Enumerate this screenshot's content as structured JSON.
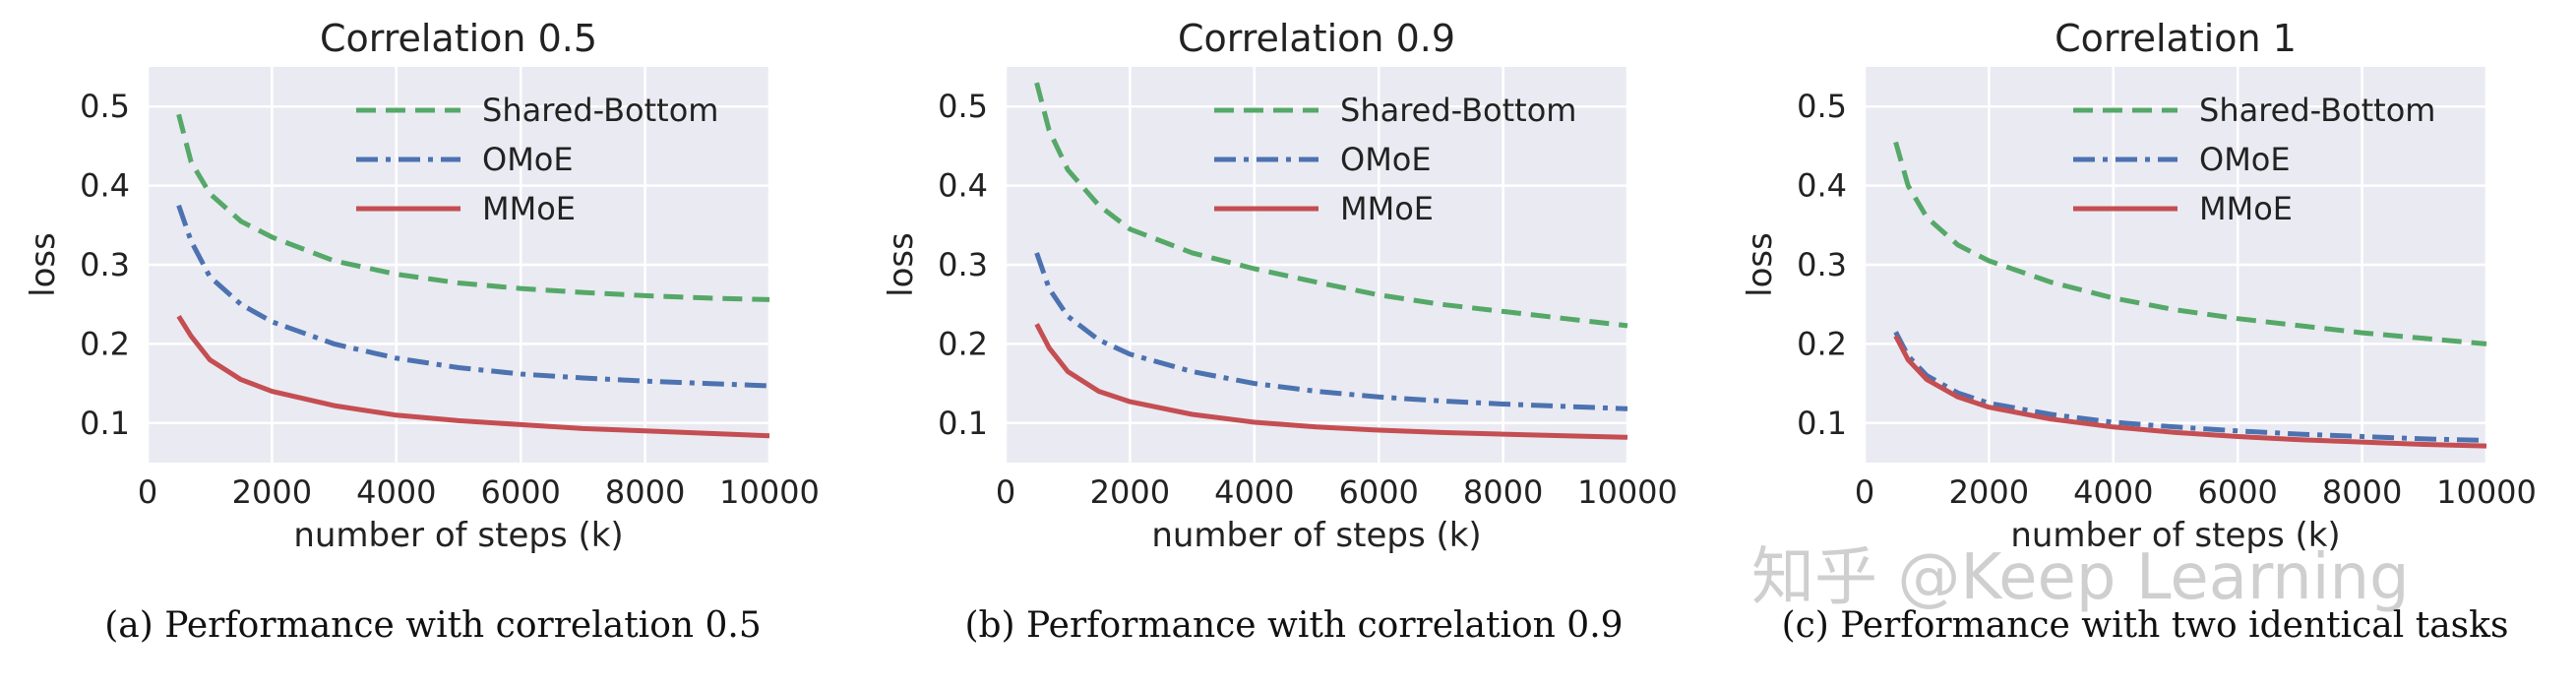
{
  "figure": {
    "captions": [
      "(a) Performance with correlation 0.5",
      "(b) Performance with correlation 0.9",
      "(c) Performance with two identical tasks"
    ],
    "watermark": "知乎 @Keep Learning"
  },
  "colors": {
    "background": "#EAEAF2",
    "grid": "#FFFFFF",
    "shared_bottom": "#55A868",
    "omoe": "#4C72B0",
    "mmoe": "#C44E52",
    "text": "#222222"
  },
  "chart_data": [
    {
      "type": "line",
      "title": "Correlation 0.5",
      "xlabel": "number of steps (k)",
      "ylabel": "loss",
      "xlim": [
        0,
        10000
      ],
      "ylim": [
        0.05,
        0.55
      ],
      "xticks": [
        0,
        2000,
        4000,
        6000,
        8000,
        10000
      ],
      "xtick_labels": [
        "0",
        "2000",
        "4000",
        "6000",
        "8000",
        "10000"
      ],
      "yticks": [
        0.1,
        0.2,
        0.3,
        0.4,
        0.5
      ],
      "ytick_labels": [
        "0.1",
        "0.2",
        "0.3",
        "0.4",
        "0.5"
      ],
      "grid": true,
      "legend": "top-right",
      "x": [
        500,
        700,
        1000,
        1500,
        2000,
        3000,
        4000,
        5000,
        6000,
        7000,
        8000,
        9000,
        10000
      ],
      "series": [
        {
          "name": "Shared-Bottom",
          "style": "dashed",
          "values": [
            0.49,
            0.43,
            0.39,
            0.355,
            0.335,
            0.305,
            0.288,
            0.277,
            0.27,
            0.265,
            0.261,
            0.258,
            0.256
          ]
        },
        {
          "name": "OMoE",
          "style": "dashdot",
          "values": [
            0.375,
            0.33,
            0.285,
            0.25,
            0.228,
            0.2,
            0.182,
            0.17,
            0.162,
            0.157,
            0.153,
            0.15,
            0.147
          ]
        },
        {
          "name": "MMoE",
          "style": "solid",
          "values": [
            0.235,
            0.21,
            0.18,
            0.155,
            0.14,
            0.122,
            0.11,
            0.103,
            0.098,
            0.093,
            0.09,
            0.087,
            0.084
          ]
        }
      ]
    },
    {
      "type": "line",
      "title": "Correlation 0.9",
      "xlabel": "number of steps (k)",
      "ylabel": "loss",
      "xlim": [
        0,
        10000
      ],
      "ylim": [
        0.05,
        0.55
      ],
      "xticks": [
        0,
        2000,
        4000,
        6000,
        8000,
        10000
      ],
      "xtick_labels": [
        "0",
        "2000",
        "4000",
        "6000",
        "8000",
        "10000"
      ],
      "yticks": [
        0.1,
        0.2,
        0.3,
        0.4,
        0.5
      ],
      "ytick_labels": [
        "0.1",
        "0.2",
        "0.3",
        "0.4",
        "0.5"
      ],
      "grid": true,
      "legend": "top-right",
      "x": [
        500,
        700,
        1000,
        1500,
        2000,
        3000,
        4000,
        5000,
        6000,
        7000,
        8000,
        9000,
        10000
      ],
      "series": [
        {
          "name": "Shared-Bottom",
          "style": "dashed",
          "values": [
            0.53,
            0.47,
            0.42,
            0.375,
            0.345,
            0.315,
            0.295,
            0.278,
            0.262,
            0.25,
            0.241,
            0.232,
            0.223
          ]
        },
        {
          "name": "OMoE",
          "style": "dashdot",
          "values": [
            0.315,
            0.27,
            0.235,
            0.205,
            0.187,
            0.165,
            0.15,
            0.14,
            0.133,
            0.128,
            0.124,
            0.121,
            0.118
          ]
        },
        {
          "name": "MMoE",
          "style": "solid",
          "values": [
            0.225,
            0.195,
            0.165,
            0.14,
            0.127,
            0.111,
            0.101,
            0.095,
            0.091,
            0.088,
            0.086,
            0.084,
            0.082
          ]
        }
      ]
    },
    {
      "type": "line",
      "title": "Correlation 1",
      "xlabel": "number of steps (k)",
      "ylabel": "loss",
      "xlim": [
        0,
        10000
      ],
      "ylim": [
        0.05,
        0.55
      ],
      "xticks": [
        0,
        2000,
        4000,
        6000,
        8000,
        10000
      ],
      "xtick_labels": [
        "0",
        "2000",
        "4000",
        "6000",
        "8000",
        "10000"
      ],
      "yticks": [
        0.1,
        0.2,
        0.3,
        0.4,
        0.5
      ],
      "ytick_labels": [
        "0.1",
        "0.2",
        "0.3",
        "0.4",
        "0.5"
      ],
      "grid": true,
      "legend": "top-right",
      "x": [
        500,
        700,
        1000,
        1500,
        2000,
        3000,
        4000,
        5000,
        6000,
        7000,
        8000,
        9000,
        10000
      ],
      "series": [
        {
          "name": "Shared-Bottom",
          "style": "dashed",
          "values": [
            0.455,
            0.4,
            0.36,
            0.325,
            0.305,
            0.278,
            0.258,
            0.243,
            0.232,
            0.223,
            0.214,
            0.207,
            0.2
          ]
        },
        {
          "name": "OMoE",
          "style": "dashdot",
          "values": [
            0.215,
            0.185,
            0.16,
            0.138,
            0.125,
            0.111,
            0.101,
            0.095,
            0.09,
            0.086,
            0.083,
            0.08,
            0.078
          ]
        },
        {
          "name": "MMoE",
          "style": "solid",
          "values": [
            0.21,
            0.18,
            0.155,
            0.133,
            0.12,
            0.105,
            0.095,
            0.088,
            0.083,
            0.079,
            0.076,
            0.073,
            0.071
          ]
        }
      ]
    }
  ]
}
